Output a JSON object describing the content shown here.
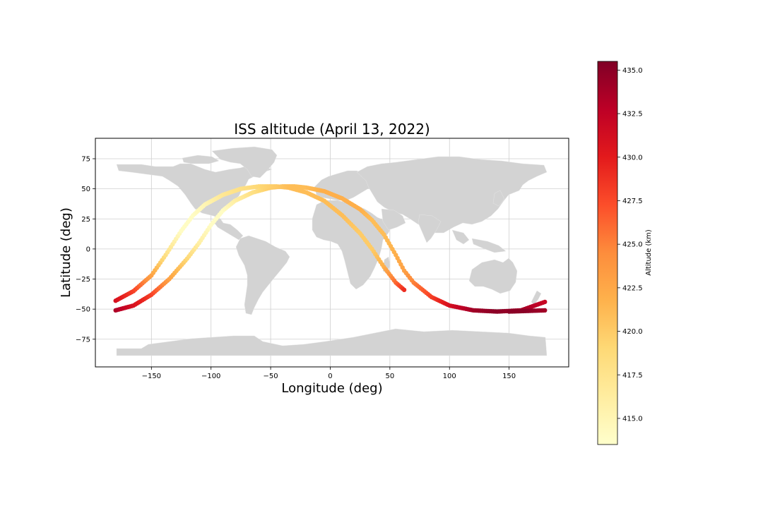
{
  "chart_data": {
    "type": "scatter",
    "title": "ISS altitude (April 13, 2022)",
    "xlabel": "Longitude (deg)",
    "ylabel": "Latitude (deg)",
    "xlim": [
      -197,
      200
    ],
    "ylim": [
      -98,
      92
    ],
    "xticks": [
      -150,
      -100,
      -50,
      0,
      50,
      100,
      150
    ],
    "xtick_labels": [
      "−150",
      "−100",
      "−50",
      "0",
      "50",
      "100",
      "150"
    ],
    "yticks": [
      -75,
      -50,
      -25,
      0,
      25,
      50,
      75
    ],
    "ytick_labels": [
      "−75",
      "−50",
      "−25",
      "0",
      "25",
      "50",
      "75"
    ],
    "grid": true,
    "basemap": "world land polygons (light gray)",
    "colormap": "YlOrRd",
    "colorbar": {
      "label": "Altitude (km)",
      "range": [
        413.5,
        435.5
      ],
      "ticks": [
        415.0,
        417.5,
        420.0,
        422.5,
        425.0,
        427.5,
        430.0,
        432.5,
        435.0
      ],
      "tick_labels": [
        "415.0",
        "417.5",
        "420.0",
        "422.5",
        "425.0",
        "427.5",
        "430.0",
        "432.5",
        "435.0"
      ]
    },
    "series": [
      {
        "segment": "track-a",
        "points": [
          {
            "lon": -180,
            "lat": -51,
            "alt": 433.5
          },
          {
            "lon": -165,
            "lat": -47,
            "alt": 431
          },
          {
            "lon": -150,
            "lat": -38,
            "alt": 428
          },
          {
            "lon": -135,
            "lat": -25,
            "alt": 423
          },
          {
            "lon": -120,
            "lat": -8,
            "alt": 419
          },
          {
            "lon": -110,
            "lat": 5,
            "alt": 416
          },
          {
            "lon": -100,
            "lat": 20,
            "alt": 414
          },
          {
            "lon": -90,
            "lat": 32,
            "alt": 414
          },
          {
            "lon": -80,
            "lat": 40,
            "alt": 416
          },
          {
            "lon": -65,
            "lat": 47,
            "alt": 418
          },
          {
            "lon": -50,
            "lat": 51,
            "alt": 420
          },
          {
            "lon": -40,
            "lat": 52,
            "alt": 421
          },
          {
            "lon": -30,
            "lat": 52,
            "alt": 421
          },
          {
            "lon": -20,
            "lat": 51,
            "alt": 421
          },
          {
            "lon": -5,
            "lat": 48,
            "alt": 422
          },
          {
            "lon": 10,
            "lat": 42,
            "alt": 422
          },
          {
            "lon": 25,
            "lat": 33,
            "alt": 422
          },
          {
            "lon": 35,
            "lat": 24,
            "alt": 421
          },
          {
            "lon": 45,
            "lat": 12,
            "alt": 421
          },
          {
            "lon": 55,
            "lat": -5,
            "alt": 422
          },
          {
            "lon": 62,
            "lat": -18,
            "alt": 423
          },
          {
            "lon": 70,
            "lat": -28,
            "alt": 425
          },
          {
            "lon": 85,
            "lat": -40,
            "alt": 428
          },
          {
            "lon": 100,
            "lat": -47,
            "alt": 431
          },
          {
            "lon": 120,
            "lat": -51,
            "alt": 434
          },
          {
            "lon": 140,
            "lat": -52,
            "alt": 435
          },
          {
            "lon": 160,
            "lat": -51,
            "alt": 434
          },
          {
            "lon": 180,
            "lat": -44,
            "alt": 432
          }
        ]
      },
      {
        "segment": "track-b",
        "points": [
          {
            "lon": -180,
            "lat": -43,
            "alt": 431
          },
          {
            "lon": -165,
            "lat": -35,
            "alt": 428
          },
          {
            "lon": -150,
            "lat": -22,
            "alt": 423
          },
          {
            "lon": -138,
            "lat": -5,
            "alt": 418
          },
          {
            "lon": -125,
            "lat": 15,
            "alt": 414
          },
          {
            "lon": -115,
            "lat": 28,
            "alt": 414
          },
          {
            "lon": -105,
            "lat": 37,
            "alt": 415
          },
          {
            "lon": -90,
            "lat": 45,
            "alt": 417
          },
          {
            "lon": -75,
            "lat": 50,
            "alt": 418
          },
          {
            "lon": -60,
            "lat": 52,
            "alt": 419
          },
          {
            "lon": -45,
            "lat": 52,
            "alt": 420
          },
          {
            "lon": -35,
            "lat": 51,
            "alt": 421
          },
          {
            "lon": -20,
            "lat": 47,
            "alt": 421
          },
          {
            "lon": -5,
            "lat": 40,
            "alt": 421
          },
          {
            "lon": 10,
            "lat": 28,
            "alt": 421
          },
          {
            "lon": 25,
            "lat": 13,
            "alt": 420
          },
          {
            "lon": 35,
            "lat": 0,
            "alt": 420
          },
          {
            "lon": 45,
            "lat": -15,
            "alt": 422
          },
          {
            "lon": 55,
            "lat": -28,
            "alt": 426
          },
          {
            "lon": 62,
            "lat": -34,
            "alt": 429
          }
        ]
      },
      {
        "segment": "track-c",
        "points": [
          {
            "lon": 150,
            "lat": -52,
            "alt": 435
          },
          {
            "lon": 165,
            "lat": -51.5,
            "alt": 435
          },
          {
            "lon": 180,
            "lat": -51,
            "alt": 434
          }
        ]
      }
    ]
  }
}
